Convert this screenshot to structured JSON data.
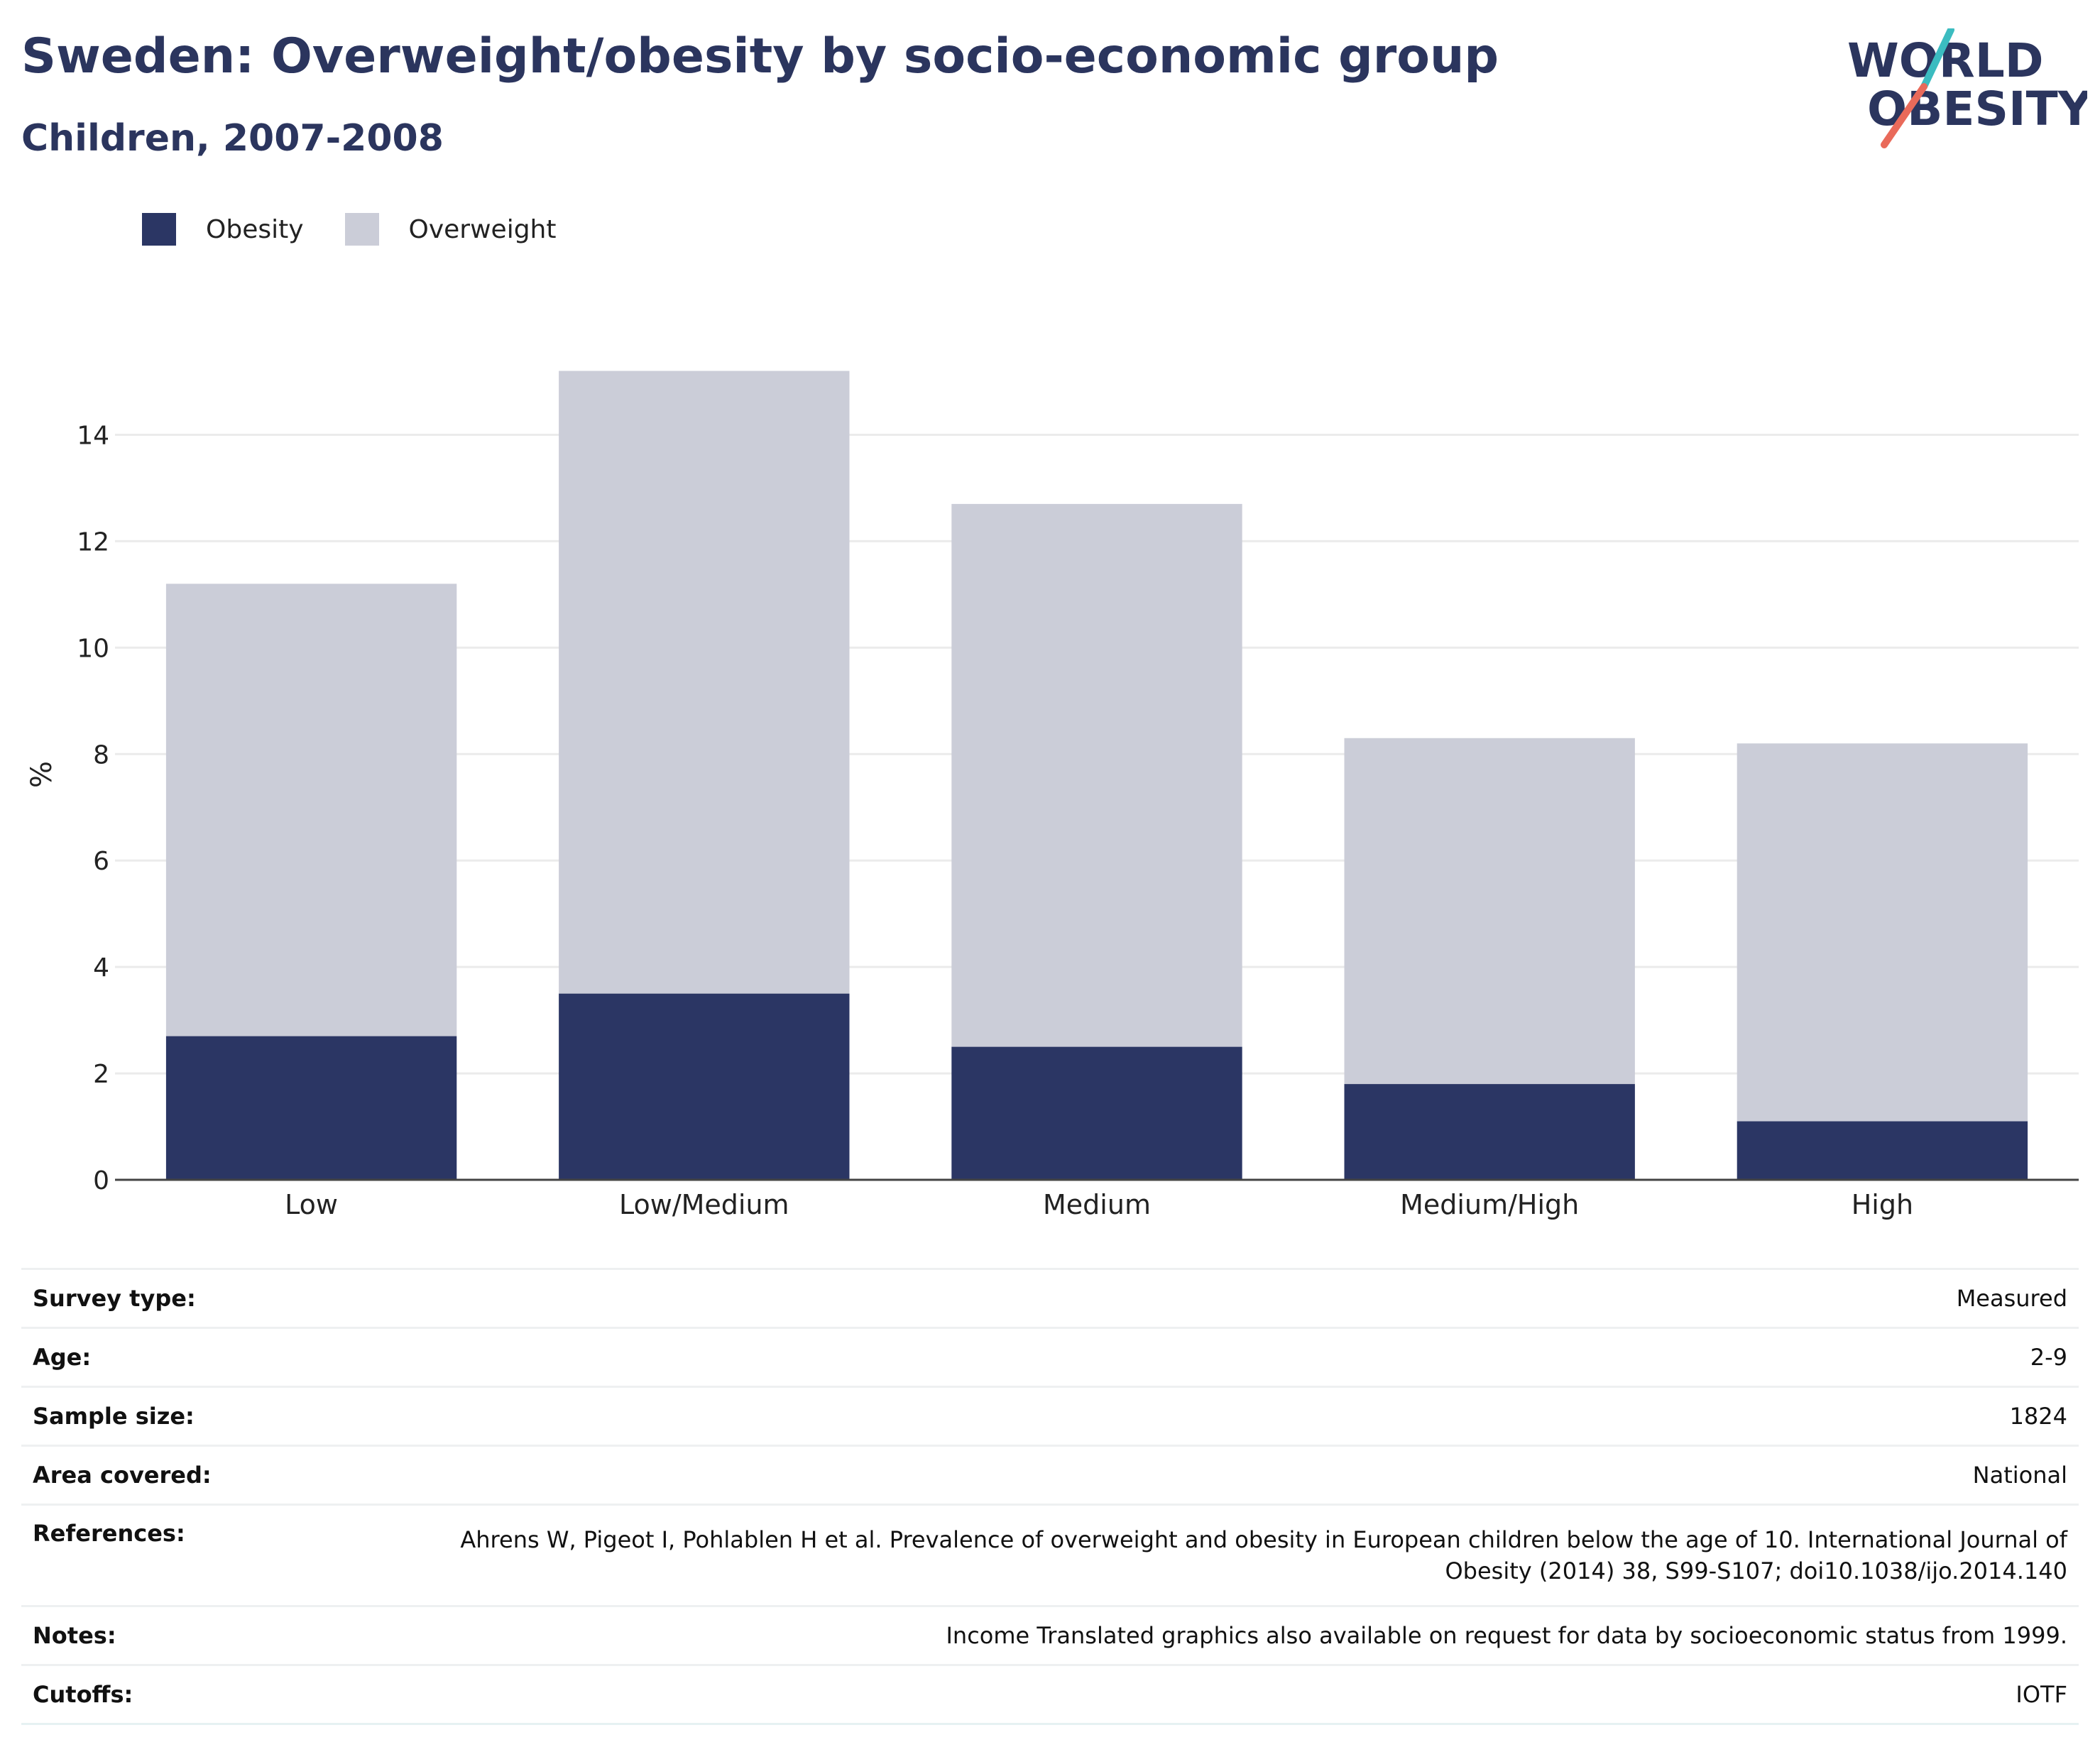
{
  "header": {
    "title": "Sweden: Overweight/obesity by socio-economic group",
    "subtitle": "Children, 2007-2008"
  },
  "logo": {
    "line1": "WORLD",
    "line2": "OBESITY"
  },
  "colors": {
    "obesity": "#2b3664",
    "overweight": "#cbcdd8",
    "title": "#2b355e",
    "logo_teal": "#3bbcc0",
    "logo_coral": "#e96a5a"
  },
  "legend": [
    {
      "label": "Obesity",
      "color": "#2b3664"
    },
    {
      "label": "Overweight",
      "color": "#cbcdd8"
    }
  ],
  "chart_data": {
    "type": "bar",
    "stacked": true,
    "categories": [
      "Low",
      "Low/Medium",
      "Medium",
      "Medium/High",
      "High"
    ],
    "series": [
      {
        "name": "Obesity",
        "values": [
          2.7,
          3.5,
          2.5,
          1.8,
          1.1
        ]
      },
      {
        "name": "Overweight",
        "values": [
          8.5,
          11.7,
          10.2,
          6.5,
          7.1
        ]
      }
    ],
    "xlabel": "",
    "ylabel": "%",
    "yticks": [
      0,
      2,
      4,
      6,
      8,
      10,
      12,
      14
    ],
    "ylim": [
      0,
      15.5
    ],
    "grid": true,
    "legend_position": "top-left"
  },
  "metadata": [
    {
      "key": "Survey type:",
      "value": "Measured"
    },
    {
      "key": "Age:",
      "value": "2-9"
    },
    {
      "key": "Sample size:",
      "value": "1824"
    },
    {
      "key": "Area covered:",
      "value": "National"
    },
    {
      "key": "References:",
      "value": "Ahrens W, Pigeot I, Pohlablen H et al. Prevalence of overweight and obesity in European children below the age of 10. International Journal of Obesity (2014) 38, S99-S107; doi10.1038/ijo.2014.140"
    },
    {
      "key": "Notes:",
      "value": "Income Translated graphics also available on request for data by socioeconomic status from 1999."
    },
    {
      "key": "Cutoffs:",
      "value": "IOTF"
    }
  ]
}
